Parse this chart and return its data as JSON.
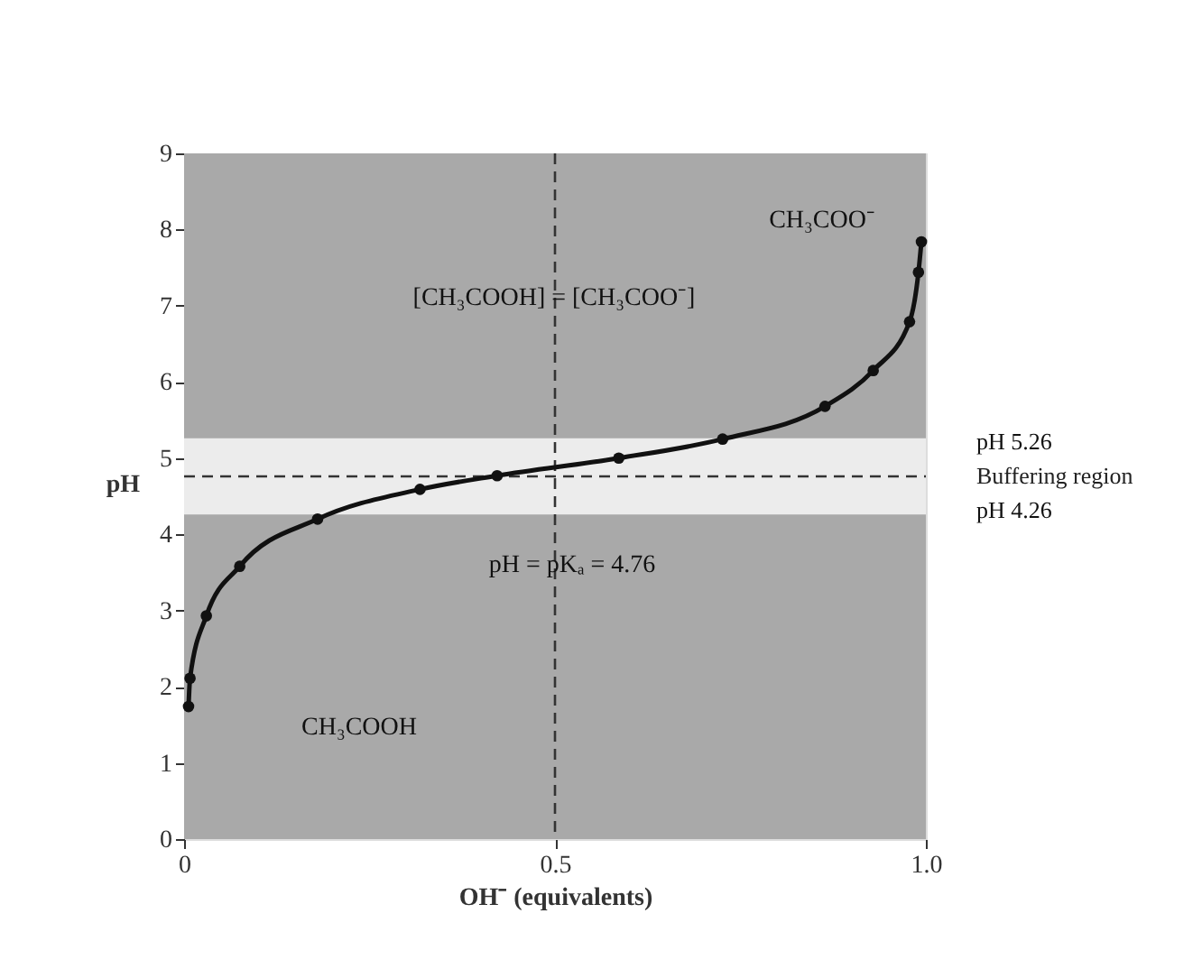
{
  "chart_data": {
    "type": "line",
    "xlabel": "OH⁻ (equivalents)",
    "ylabel": "pH",
    "x": [
      0.006,
      0.008,
      0.03,
      0.075,
      0.18,
      0.318,
      0.422,
      0.586,
      0.726,
      0.864,
      0.929,
      0.978,
      0.99,
      0.994
    ],
    "values": [
      1.74,
      2.11,
      2.93,
      3.58,
      4.2,
      4.59,
      4.77,
      5.0,
      5.25,
      5.68,
      6.15,
      6.79,
      7.44,
      7.84
    ],
    "color": "#111111",
    "marker": "circle",
    "line_style": "solid",
    "xlim": [
      0,
      1.0
    ],
    "ylim": [
      0,
      9
    ],
    "xticks": [
      0,
      0.5,
      {
        "value": 1.0,
        "label": "1.0"
      }
    ],
    "yticks": [
      0,
      1,
      2,
      3,
      4,
      5,
      6,
      7,
      8,
      9
    ],
    "bands": [
      {
        "axis": "y",
        "from": 4.26,
        "to": 5.26,
        "label": "Buffering region",
        "color": "#ececec"
      }
    ],
    "ref_lines": [
      {
        "axis": "y",
        "value": 4.76,
        "line_style": "dashed"
      },
      {
        "axis": "x",
        "value": 0.5,
        "line_style": "dashed"
      }
    ],
    "annotations": [
      "[CH₃COOH] = [CH₃COO⁻]",
      "pH = pKₐ = 4.76",
      {
        "text": "CH₃COO⁻",
        "x": 0.994,
        "y": 7.84
      },
      "CH₃COOH",
      "pH 5.26",
      "pH 4.26"
    ]
  }
}
